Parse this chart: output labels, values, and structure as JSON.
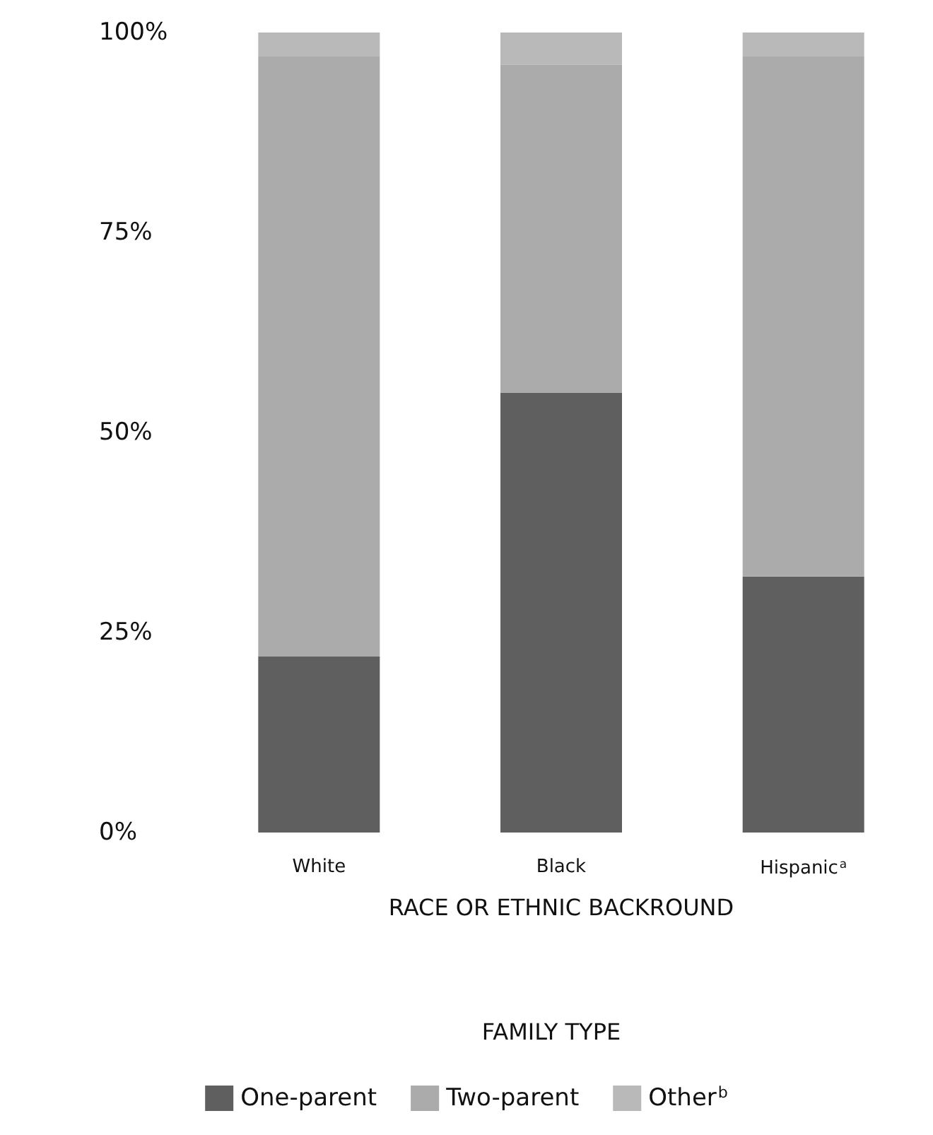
{
  "chart_data": {
    "type": "bar",
    "stacked": true,
    "xlabel": "RACE OR ETHNIC BACKROUND",
    "legend_title": "FAMILY TYPE",
    "legend": "bottom",
    "grid": false,
    "categories": [
      "White",
      "Black",
      "Hispanic$^{a}$"
    ],
    "series": [
      {
        "name": "One-parent",
        "color": "#5f5f5f",
        "values": [
          22,
          55,
          32
        ]
      },
      {
        "name": "Two-parent",
        "color": "#ababab",
        "values": [
          75,
          41,
          65
        ]
      },
      {
        "name": "Other$^{b}$",
        "color": "#b9b9b9",
        "values": [
          3,
          4,
          3
        ]
      }
    ],
    "ylim": [
      0,
      100
    ],
    "yticks": [
      {
        "value": 0,
        "label": "0%"
      },
      {
        "value": 25,
        "label": "25%"
      },
      {
        "value": 50,
        "label": "50%"
      },
      {
        "value": 75,
        "label": "75%"
      },
      {
        "value": 100,
        "label": "100%"
      }
    ]
  }
}
